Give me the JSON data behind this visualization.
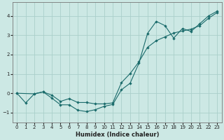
{
  "xlabel": "Humidex (Indice chaleur)",
  "bg_color": "#cce8e4",
  "line_color": "#1a6b6b",
  "grid_color": "#aacfca",
  "xlim": [
    -0.5,
    23.5
  ],
  "ylim": [
    -1.5,
    4.7
  ],
  "xticks": [
    0,
    1,
    2,
    3,
    4,
    5,
    6,
    7,
    8,
    9,
    10,
    11,
    12,
    13,
    14,
    15,
    16,
    17,
    18,
    19,
    20,
    21,
    22,
    23
  ],
  "yticks": [
    -1,
    0,
    1,
    2,
    3,
    4
  ],
  "curve1_x": [
    0,
    1,
    2,
    3,
    4,
    5,
    6,
    7,
    8,
    9,
    10,
    11,
    12,
    13,
    14,
    15,
    16,
    17,
    18,
    19,
    20,
    21,
    22,
    23
  ],
  "curve1_y": [
    0.0,
    -0.5,
    -0.03,
    0.07,
    -0.25,
    -0.6,
    -0.6,
    -0.88,
    -0.95,
    -0.85,
    -0.68,
    -0.58,
    0.18,
    0.52,
    1.55,
    3.1,
    3.72,
    3.5,
    2.85,
    3.35,
    3.2,
    3.6,
    4.0,
    4.25
  ],
  "curve2_x": [
    0,
    2,
    3,
    4,
    5,
    6,
    7,
    8,
    9,
    10,
    11,
    12,
    13,
    14,
    15,
    16,
    17,
    18,
    19,
    20,
    21,
    22,
    23
  ],
  "curve2_y": [
    0.0,
    -0.03,
    0.07,
    -0.1,
    -0.42,
    -0.28,
    -0.48,
    -0.48,
    -0.55,
    -0.55,
    -0.5,
    0.55,
    1.02,
    1.62,
    2.38,
    2.72,
    2.92,
    3.12,
    3.22,
    3.32,
    3.5,
    3.88,
    4.18
  ]
}
